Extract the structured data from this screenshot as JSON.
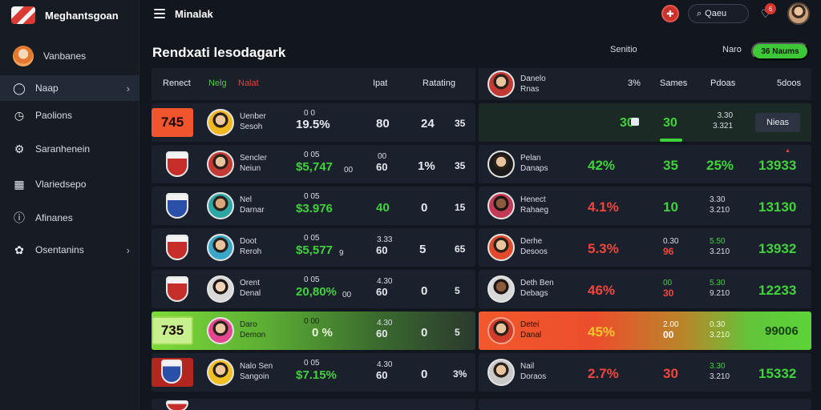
{
  "app": {
    "name": "Meghantsgoan"
  },
  "topbar": {
    "title": "Minalak",
    "search_label": "Qaeu",
    "notifications": "6"
  },
  "sidebar": {
    "items": [
      {
        "label": "Vanbanes",
        "icon": "avatar"
      },
      {
        "label": "Naap",
        "icon": "circle-icon",
        "active": true
      },
      {
        "label": "Paolions",
        "icon": "clock-icon"
      },
      {
        "label": "Saranhenein",
        "icon": "gear-icon"
      },
      {
        "label": "Vlariedsepo",
        "icon": "calendar-icon"
      },
      {
        "label": "Afinanes",
        "icon": "alert-icon"
      },
      {
        "label": "Osentanins",
        "icon": "settings-icon"
      }
    ]
  },
  "main": {
    "title": "Rendxati lesodagark",
    "links": [
      "Senitio",
      "Naro"
    ],
    "primary_button": "36 Naums"
  },
  "left_table": {
    "headers": [
      "Renect",
      "Nelg",
      "Nalat",
      "Ipat",
      "Ratating"
    ],
    "rows": [
      {
        "rank": "745",
        "name": [
          "Uenber",
          "Sesoh"
        ],
        "a": "19.5%",
        "a_small": "0  0",
        "b": "80",
        "c": "24",
        "d": "35"
      },
      {
        "name": [
          "Sencler",
          "Neiun"
        ],
        "a_small": "0  05",
        "a": "$5,747",
        "a_tail": "00",
        "b_small": "00",
        "b": "60",
        "c": "1%",
        "d": "35"
      },
      {
        "name": [
          "Nel",
          "Darnar"
        ],
        "a_small": "0  05",
        "a": "$3.976",
        "b": "40",
        "c": "0",
        "d": "15"
      },
      {
        "name": [
          "Doot",
          "Reroh"
        ],
        "a_small": "0  05",
        "a": "$5,577",
        "a_tail": "9",
        "b_small": "3.33",
        "b": "60",
        "c": "5",
        "d": "65"
      },
      {
        "name": [
          "Orent",
          "Denal"
        ],
        "a_small": "0  05",
        "a": "20,80%",
        "a_tail": "00",
        "b_small": "4.30",
        "b": "60",
        "c": "0",
        "d": "5"
      },
      {
        "rank": "735",
        "name": [
          "Daro",
          "Demon"
        ],
        "a_small": "0  00",
        "a": "0 %",
        "b_small": "4.30",
        "b": "60",
        "c": "0",
        "d": "5"
      },
      {
        "name": [
          "Nalo Sen",
          "Sangoin"
        ],
        "a_small": "0  05",
        "a": "$7.15%",
        "b_small": "4.30",
        "b": "60",
        "c": "0",
        "d": "3%"
      }
    ]
  },
  "right_table": {
    "headers": [
      "Danelo",
      "Rnas",
      "3%",
      "Sames",
      "Pdoas",
      "5doos"
    ],
    "rows": [
      {
        "c1": "30",
        "c2": "30",
        "c3": [
          "3.30",
          "3.321"
        ],
        "action": "Nieas"
      },
      {
        "name": [
          "Pelan",
          "Danaps"
        ],
        "c1": "42%",
        "c2": "35",
        "c3": "25%",
        "c4": "13933"
      },
      {
        "name": [
          "Henect",
          "Rahaeg"
        ],
        "c1": "4.1%",
        "c2": "10",
        "c3": [
          "3.30",
          "3.210"
        ],
        "c4": "13130"
      },
      {
        "name": [
          "Derhe",
          "Desoos"
        ],
        "c1": "5.3%",
        "c2": [
          "0.30",
          "96"
        ],
        "c3": [
          "5.50",
          "3.210"
        ],
        "c4": "13932"
      },
      {
        "name": [
          "Deth Ben",
          "Debags"
        ],
        "c1": "46%",
        "c2": [
          "00",
          "30"
        ],
        "c3": [
          "5.30",
          "9.210"
        ],
        "c4": "12233"
      },
      {
        "name": [
          "Detei",
          "Danal"
        ],
        "c1": "45%",
        "c2": [
          "2.00",
          "00"
        ],
        "c3": [
          "0.30",
          "3.210"
        ],
        "c4": "99006"
      },
      {
        "name": [
          "Nail",
          "Doraos"
        ],
        "c1": "2.7%",
        "c2": "30",
        "c3": [
          "3.30",
          "3.210"
        ],
        "c4": "15332"
      }
    ]
  },
  "colors": {
    "accent_green": "#3fd33a",
    "accent_red": "#f0463c",
    "bg": "#12161e"
  }
}
